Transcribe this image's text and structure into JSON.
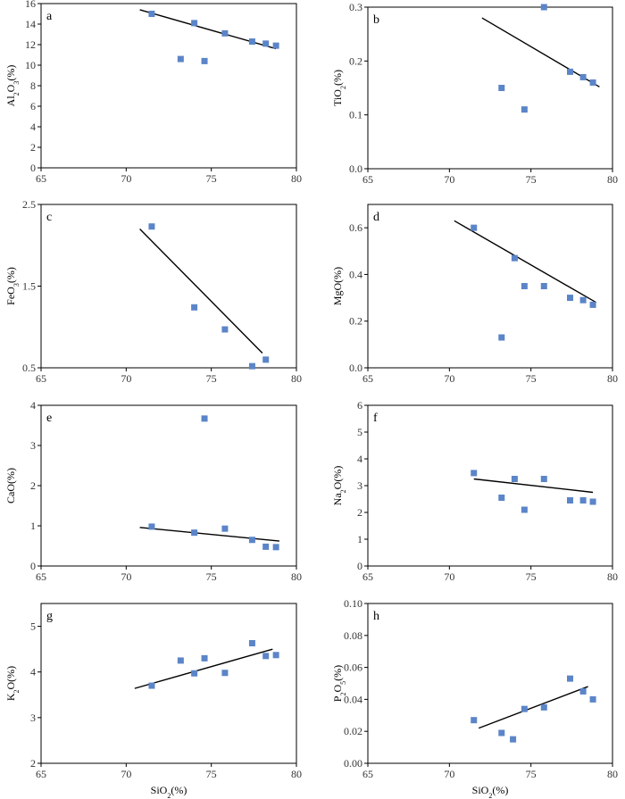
{
  "figure": {
    "x_axis_label": "SiO2(%)",
    "point_color": "#5b85c8"
  },
  "chart_data": [
    {
      "panel": "a",
      "type": "scatter",
      "ylabel": "Al2O3(%)",
      "xlim": [
        65,
        80
      ],
      "ylim": [
        0,
        16
      ],
      "xticks": [
        65,
        70,
        75,
        80
      ],
      "yticks": [
        0,
        2,
        4,
        6,
        8,
        10,
        12,
        14,
        16
      ],
      "points": [
        [
          71.5,
          15.0
        ],
        [
          74.0,
          14.1
        ],
        [
          75.8,
          13.1
        ],
        [
          77.4,
          12.3
        ],
        [
          78.2,
          12.1
        ],
        [
          78.8,
          11.9
        ],
        [
          73.2,
          10.6
        ],
        [
          74.6,
          10.4
        ]
      ],
      "trendline": [
        [
          70.8,
          15.4
        ],
        [
          78.8,
          11.6
        ]
      ]
    },
    {
      "panel": "b",
      "type": "scatter",
      "ylabel": "TiO2(%)",
      "xlim": [
        65,
        80
      ],
      "ylim": [
        0,
        0.3
      ],
      "xticks": [
        65,
        70,
        75,
        80
      ],
      "yticks": [
        "0.0",
        "0.1",
        "0.2",
        "0.3"
      ],
      "points": [
        [
          75.8,
          0.3
        ],
        [
          73.2,
          0.15
        ],
        [
          74.6,
          0.11
        ],
        [
          77.4,
          0.18
        ],
        [
          78.2,
          0.17
        ],
        [
          78.8,
          0.16
        ]
      ],
      "trendline": [
        [
          72.0,
          0.28
        ],
        [
          79.2,
          0.152
        ]
      ]
    },
    {
      "panel": "c",
      "type": "scatter",
      "ylabel": "FeO3(%)",
      "xlim": [
        65,
        80
      ],
      "ylim": [
        0.5,
        2.5
      ],
      "xticks": [
        65,
        70,
        75,
        80
      ],
      "yticks": [
        "0.5",
        "1.5",
        "2.5"
      ],
      "points": [
        [
          71.5,
          2.23
        ],
        [
          74.0,
          1.24
        ],
        [
          75.8,
          0.97
        ],
        [
          77.4,
          0.52
        ],
        [
          78.2,
          0.6
        ]
      ],
      "trendline": [
        [
          70.8,
          2.2
        ],
        [
          78.0,
          0.68
        ]
      ]
    },
    {
      "panel": "d",
      "type": "scatter",
      "ylabel": "MgO(%)",
      "xlim": [
        65,
        80
      ],
      "ylim": [
        0,
        0.7
      ],
      "xticks": [
        65,
        70,
        75,
        80
      ],
      "yticks": [
        "0.0",
        "0.2",
        "0.4",
        "0.6"
      ],
      "points": [
        [
          71.5,
          0.6
        ],
        [
          74.0,
          0.47
        ],
        [
          74.6,
          0.35
        ],
        [
          75.8,
          0.35
        ],
        [
          77.4,
          0.3
        ],
        [
          78.2,
          0.29
        ],
        [
          78.8,
          0.27
        ],
        [
          73.2,
          0.13
        ]
      ],
      "trendline": [
        [
          70.3,
          0.63
        ],
        [
          79.0,
          0.28
        ]
      ]
    },
    {
      "panel": "e",
      "type": "scatter",
      "ylabel": "CaO(%)",
      "xlim": [
        65,
        80
      ],
      "ylim": [
        0,
        4
      ],
      "xticks": [
        65,
        70,
        75,
        80
      ],
      "yticks": [
        0,
        1,
        2,
        3,
        4
      ],
      "points": [
        [
          71.5,
          0.98
        ],
        [
          74.6,
          3.67
        ],
        [
          74.0,
          0.83
        ],
        [
          75.8,
          0.93
        ],
        [
          77.4,
          0.65
        ],
        [
          78.2,
          0.48
        ],
        [
          78.8,
          0.47
        ]
      ],
      "trendline": [
        [
          70.8,
          0.96
        ],
        [
          79.0,
          0.62
        ]
      ]
    },
    {
      "panel": "f",
      "type": "scatter",
      "ylabel": "Na2O(%)",
      "xlim": [
        65,
        80
      ],
      "ylim": [
        0,
        6
      ],
      "xticks": [
        65,
        70,
        75,
        80
      ],
      "yticks": [
        0,
        1,
        2,
        3,
        4,
        5,
        6
      ],
      "points": [
        [
          71.5,
          3.47
        ],
        [
          74.0,
          3.25
        ],
        [
          75.8,
          3.25
        ],
        [
          73.2,
          2.55
        ],
        [
          74.6,
          2.1
        ],
        [
          77.4,
          2.45
        ],
        [
          78.2,
          2.45
        ],
        [
          78.8,
          2.4
        ]
      ],
      "trendline": [
        [
          71.5,
          3.25
        ],
        [
          78.8,
          2.75
        ]
      ]
    },
    {
      "panel": "g",
      "type": "scatter",
      "ylabel": "K2O(%)",
      "xlim": [
        65,
        80
      ],
      "ylim": [
        2,
        5.5
      ],
      "xticks": [
        65,
        70,
        75,
        80
      ],
      "yticks": [
        2,
        3,
        4,
        5
      ],
      "points": [
        [
          71.5,
          3.7
        ],
        [
          73.2,
          4.25
        ],
        [
          74.0,
          3.97
        ],
        [
          74.6,
          4.3
        ],
        [
          75.8,
          3.98
        ],
        [
          77.4,
          4.63
        ],
        [
          78.2,
          4.35
        ],
        [
          78.8,
          4.37
        ]
      ],
      "trendline": [
        [
          70.5,
          3.64
        ],
        [
          78.6,
          4.5
        ]
      ]
    },
    {
      "panel": "h",
      "type": "scatter",
      "ylabel": "P2O5(%)",
      "xlim": [
        65,
        80
      ],
      "ylim": [
        0,
        0.1
      ],
      "xticks": [
        65,
        70,
        75,
        80
      ],
      "yticks": [
        "0.00",
        "0.02",
        "0.04",
        "0.06",
        "0.08",
        "0.10"
      ],
      "points": [
        [
          71.5,
          0.027
        ],
        [
          73.2,
          0.019
        ],
        [
          73.9,
          0.015
        ],
        [
          74.6,
          0.034
        ],
        [
          75.8,
          0.035
        ],
        [
          77.4,
          0.053
        ],
        [
          78.2,
          0.045
        ],
        [
          78.8,
          0.04
        ]
      ],
      "trendline": [
        [
          71.8,
          0.022
        ],
        [
          78.5,
          0.048
        ]
      ]
    }
  ]
}
